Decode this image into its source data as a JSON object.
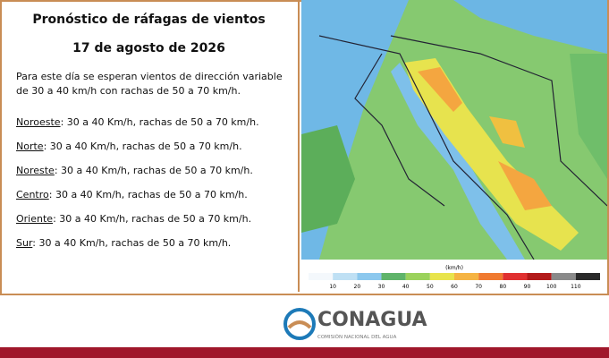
{
  "header": {
    "title": "Pronóstico de ráfagas de vientos",
    "date": "17 de agosto de 2026"
  },
  "summary": "Para este día se esperan vientos de dirección variable de 30 a 40 km/h con rachas de 50 a 70 km/h.",
  "regions": [
    {
      "name": "Noroeste",
      "detail": ":  30 a 40 Km/h, rachas de 50 a 70 km/h."
    },
    {
      "name": "Norte",
      "detail": ": 30 a 40 Km/h, rachas de 50 a 70 km/h."
    },
    {
      "name": "Noreste",
      "detail": ": 30 a 40 Km/h, rachas de 50 a 70 km/h."
    },
    {
      "name": "Centro",
      "detail": ":  30 a 40 Km/h, rachas de 50 a 70 km/h."
    },
    {
      "name": "Oriente",
      "detail": ":  30 a 40 Km/h, rachas de 50 a 70 km/h."
    },
    {
      "name": "Sur",
      "detail": ":  30 a 40 Km/h, rachas de 50 a 70 km/h."
    }
  ],
  "map": {
    "legend": {
      "unit": "(km/h)",
      "ticks": [
        10,
        20,
        30,
        40,
        50,
        60,
        70,
        80,
        90,
        100,
        110
      ]
    }
  },
  "footer": {
    "logo": "CONAGUA",
    "subtitle": "COMISIÓN NACIONAL DEL AGUA"
  }
}
